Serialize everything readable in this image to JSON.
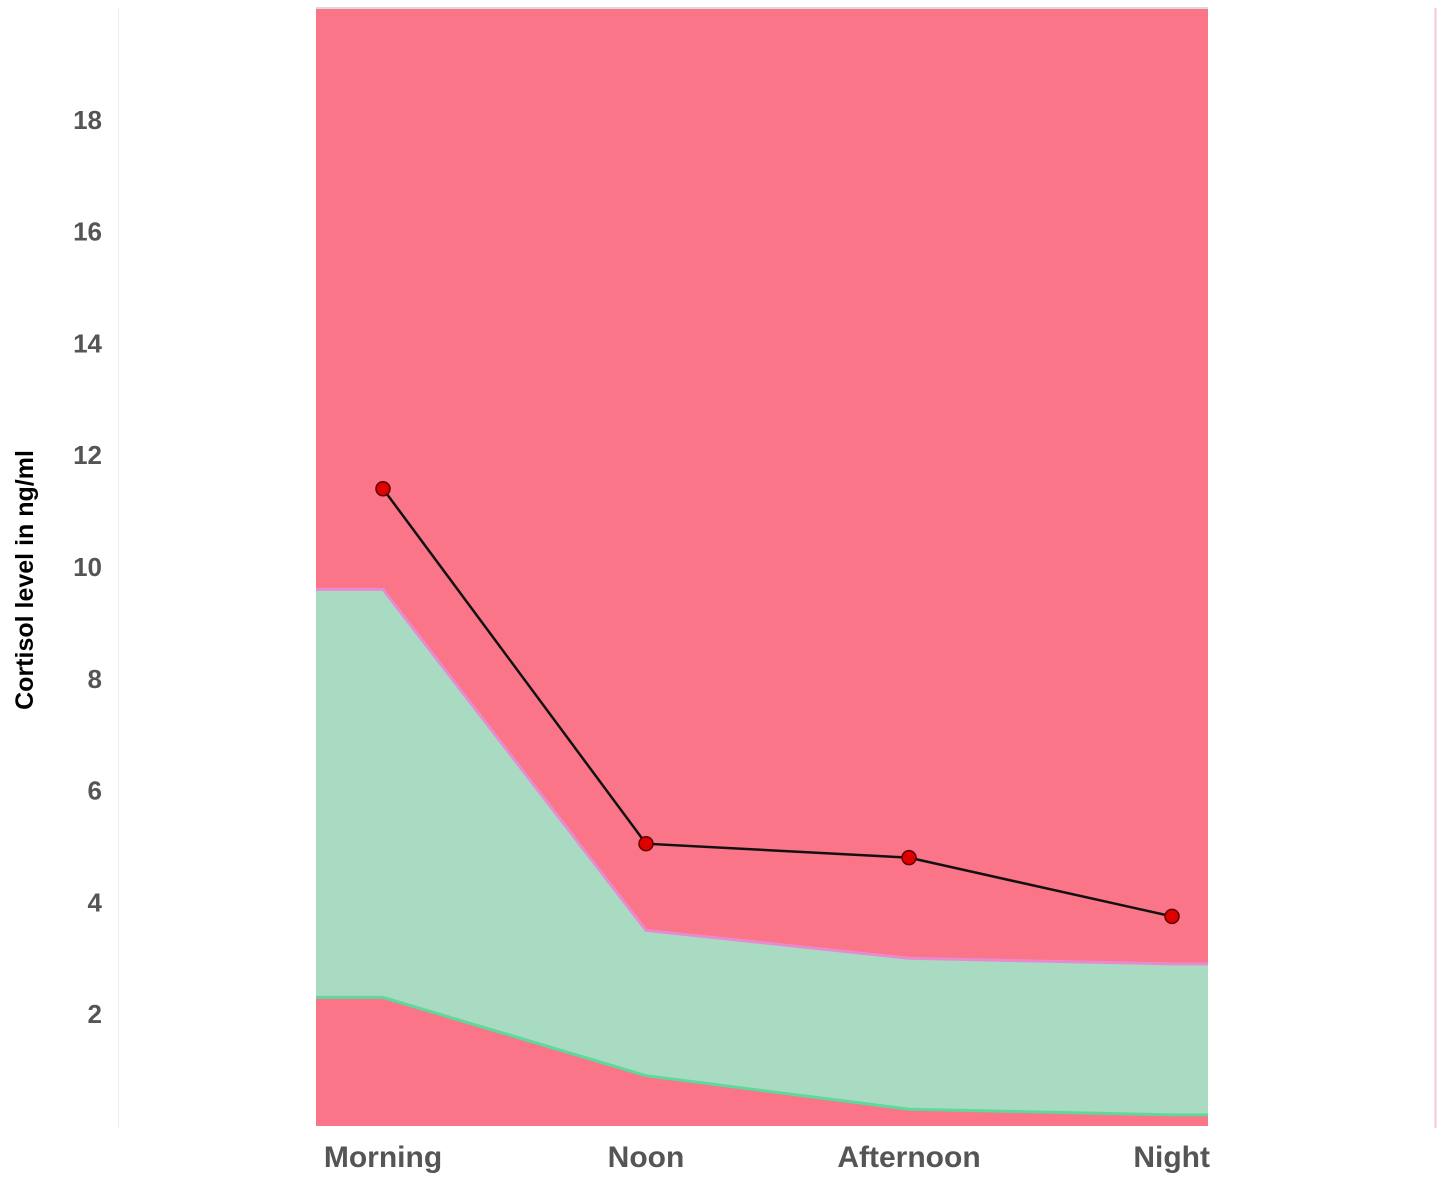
{
  "chart_data": {
    "type": "area",
    "title": "",
    "xlabel": "",
    "ylabel": "Cortisol level in ng/ml",
    "categories": [
      "Morning",
      "Noon",
      "Afternoon",
      "Night"
    ],
    "y_ticks": [
      "2",
      "4",
      "6",
      "8",
      "10",
      "12",
      "14",
      "16",
      "18"
    ],
    "y_tick_values": [
      2,
      4,
      6,
      8,
      10,
      12,
      14,
      16,
      18
    ],
    "ylim": [
      0,
      20
    ],
    "grid": false,
    "legend": "none",
    "bands": {
      "normal_lower": [
        2.3,
        0.9,
        0.3,
        0.2
      ],
      "normal_upper": [
        9.6,
        3.5,
        3.0,
        2.9
      ]
    },
    "series": [
      {
        "values": [
          11.4,
          5.05,
          4.8,
          3.75
        ]
      }
    ],
    "colors": {
      "out_of_range": "#f97587",
      "normal_range": "#a8dbc1",
      "lower_edge": "#5fd99b",
      "upper_edge": "#e98ad0",
      "line": "#111111",
      "marker": "#e10000",
      "frame": "#d9d9d9"
    }
  }
}
